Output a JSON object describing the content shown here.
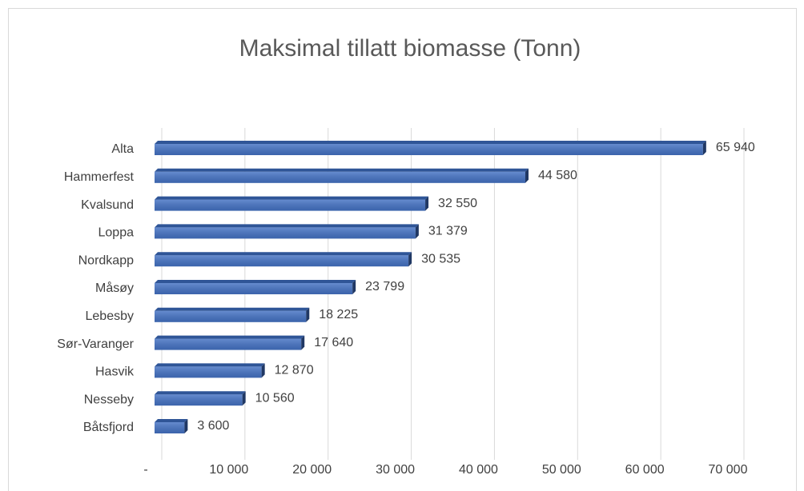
{
  "chart_data": {
    "type": "bar",
    "orientation": "horizontal",
    "title": "Maksimal tillatt biomasse (Tonn)",
    "categories": [
      "Alta",
      "Hammerfest",
      "Kvalsund",
      "Loppa",
      "Nordkapp",
      "Måsøy",
      "Lebesby",
      "Sør-Varanger",
      "Hasvik",
      "Nesseby",
      "Båtsfjord"
    ],
    "values": [
      65940,
      44580,
      32550,
      31379,
      30535,
      23799,
      18225,
      17640,
      12870,
      10560,
      3600
    ],
    "value_labels": [
      "65 940",
      "44 580",
      "32 550",
      "31 379",
      "30 535",
      "23 799",
      "18 225",
      "17 640",
      "12 870",
      "10 560",
      "3 600"
    ],
    "color": "#4472c4",
    "xlim": [
      0,
      70000
    ],
    "xticks": [
      {
        "value": 0,
        "label": "-"
      },
      {
        "value": 10000,
        "label": "10 000"
      },
      {
        "value": 20000,
        "label": "20 000"
      },
      {
        "value": 30000,
        "label": "30 000"
      },
      {
        "value": 40000,
        "label": "40 000"
      },
      {
        "value": 50000,
        "label": "50 000"
      },
      {
        "value": 60000,
        "label": "60 000"
      },
      {
        "value": 70000,
        "label": "70 000"
      }
    ],
    "grid": true
  }
}
